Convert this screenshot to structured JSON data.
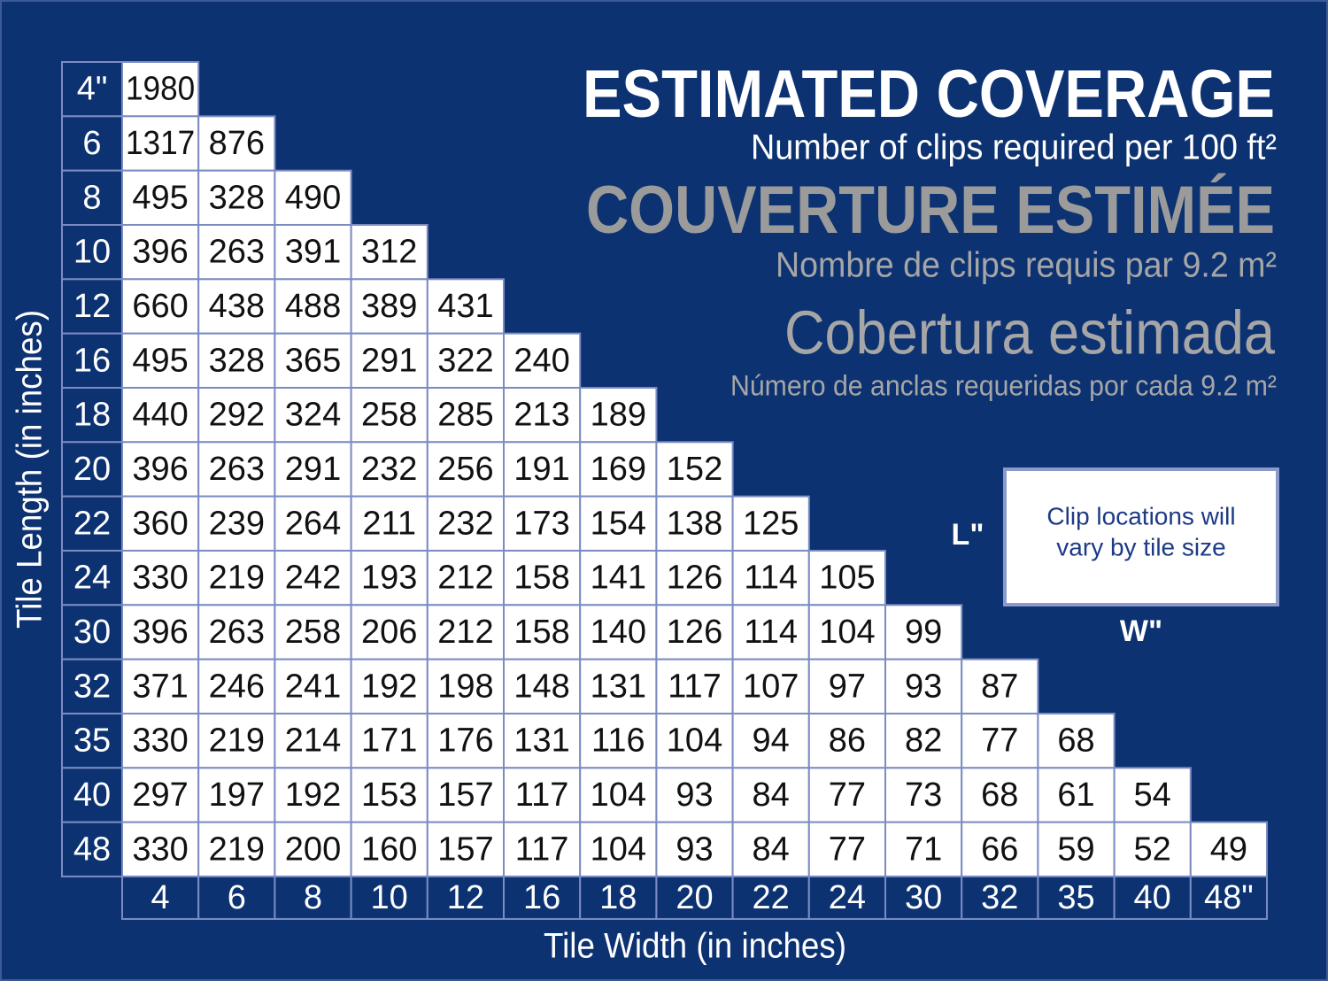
{
  "header": {
    "title_en": "ESTIMATED COVERAGE",
    "subtitle_en": "Number of clips required per 100 ft²",
    "title_fr": "COUVERTURE ESTIMÉE",
    "subtitle_fr": "Nombre de clips requis par 9.2 m²",
    "title_es": "Cobertura estimada",
    "subtitle_es": "Número de anclas requeridas por cada 9.2 m²"
  },
  "table": {
    "row_axis_label": "Tile Length (in inches)",
    "column_axis_label": "Tile Width (in inches)",
    "row_labels": [
      "4\"",
      "6",
      "8",
      "10",
      "12",
      "16",
      "18",
      "20",
      "22",
      "24",
      "30",
      "32",
      "35",
      "40",
      "48"
    ],
    "column_labels": [
      "4",
      "6",
      "8",
      "10",
      "12",
      "16",
      "18",
      "20",
      "22",
      "24",
      "30",
      "32",
      "35",
      "40",
      "48\""
    ],
    "rows": [
      [
        1980
      ],
      [
        1317,
        876
      ],
      [
        495,
        328,
        490
      ],
      [
        396,
        263,
        391,
        312
      ],
      [
        660,
        438,
        488,
        389,
        431
      ],
      [
        495,
        328,
        365,
        291,
        322,
        240
      ],
      [
        440,
        292,
        324,
        258,
        285,
        213,
        189
      ],
      [
        396,
        263,
        291,
        232,
        256,
        191,
        169,
        152
      ],
      [
        360,
        239,
        264,
        211,
        232,
        173,
        154,
        138,
        125
      ],
      [
        330,
        219,
        242,
        193,
        212,
        158,
        141,
        126,
        114,
        105
      ],
      [
        396,
        263,
        258,
        206,
        212,
        158,
        140,
        126,
        114,
        104,
        99
      ],
      [
        371,
        246,
        241,
        192,
        198,
        148,
        131,
        117,
        107,
        97,
        93,
        87
      ],
      [
        330,
        219,
        214,
        171,
        176,
        131,
        116,
        104,
        94,
        86,
        82,
        77,
        68
      ],
      [
        297,
        197,
        192,
        153,
        157,
        117,
        104,
        93,
        84,
        77,
        73,
        68,
        61,
        54
      ],
      [
        330,
        219,
        200,
        160,
        157,
        117,
        104,
        93,
        84,
        77,
        71,
        66,
        59,
        52,
        49
      ]
    ]
  },
  "diagram": {
    "box_lines": [
      "Clip locations will",
      "vary by tile size"
    ],
    "length_label": "L\"",
    "width_label": "W\""
  }
}
